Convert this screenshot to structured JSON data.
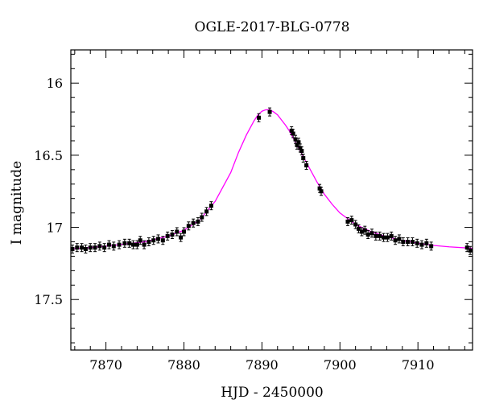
{
  "chart_data": {
    "type": "scatter",
    "title": "OGLE-2017-BLG-0778",
    "xlabel": "HJD - 2450000",
    "ylabel": "I magnitude",
    "xlim": [
      7865.5,
      7917
    ],
    "ylim": [
      17.85,
      15.77
    ],
    "y_inverted": true,
    "x_ticks": [
      7870,
      7880,
      7890,
      7900,
      7910
    ],
    "x_tick_labels": [
      "7870",
      "7880",
      "7890",
      "7900",
      "7910"
    ],
    "y_ticks": [
      16,
      16.5,
      17,
      17.5
    ],
    "y_tick_labels": [
      "16",
      "16.5",
      "17",
      "17.5"
    ],
    "grid": false,
    "series": [
      {
        "kind": "points",
        "marker": "filled-square",
        "color": "#000000",
        "x": [
          7865.7,
          7866.3,
          7866.9,
          7867.4,
          7868.0,
          7868.6,
          7869.2,
          7869.8,
          7870.4,
          7871.0,
          7871.7,
          7872.4,
          7873.0,
          7873.5,
          7874.0,
          7874.4,
          7874.9,
          7875.5,
          7876.1,
          7876.7,
          7877.3,
          7877.9,
          7878.5,
          7879.1,
          7879.6,
          7880.0,
          7880.6,
          7881.2,
          7881.8,
          7882.3,
          7882.9,
          7883.5,
          7889.6,
          7891.0,
          7893.8,
          7894.0,
          7894.3,
          7894.5,
          7894.7,
          7894.9,
          7895.1,
          7895.3,
          7895.7,
          7897.4,
          7897.6,
          7901.0,
          7901.5,
          7902.0,
          7902.4,
          7902.8,
          7903.2,
          7903.6,
          7904.1,
          7904.6,
          7905.1,
          7905.6,
          7906.1,
          7906.6,
          7907.1,
          7907.6,
          7908.1,
          7908.7,
          7909.3,
          7909.9,
          7910.5,
          7911.1,
          7911.7,
          7916.3,
          7916.7
        ],
        "y": [
          17.15,
          17.14,
          17.14,
          17.15,
          17.14,
          17.14,
          17.13,
          17.14,
          17.12,
          17.13,
          17.12,
          17.11,
          17.11,
          17.12,
          17.12,
          17.09,
          17.12,
          17.1,
          17.09,
          17.08,
          17.09,
          17.06,
          17.05,
          17.03,
          17.07,
          17.03,
          16.99,
          16.97,
          16.96,
          16.93,
          16.89,
          16.85,
          16.24,
          16.2,
          16.33,
          16.35,
          16.39,
          16.43,
          16.41,
          16.45,
          16.47,
          16.52,
          16.57,
          16.73,
          16.75,
          16.96,
          16.95,
          16.98,
          17.01,
          17.03,
          17.02,
          17.05,
          17.04,
          17.06,
          17.06,
          17.07,
          17.07,
          17.06,
          17.09,
          17.08,
          17.1,
          17.1,
          17.1,
          17.11,
          17.12,
          17.11,
          17.13,
          17.14,
          17.16
        ]
      },
      {
        "kind": "model-curve",
        "color": "#ff00ff",
        "x": [
          7865.5,
          7870,
          7875,
          7878,
          7880,
          7882,
          7884,
          7886,
          7887,
          7888,
          7889,
          7889.5,
          7890,
          7890.5,
          7891,
          7891.5,
          7892,
          7892.5,
          7893,
          7893.5,
          7894,
          7895,
          7896,
          7897,
          7898,
          7899,
          7900,
          7902,
          7904,
          7906,
          7908,
          7910,
          7912,
          7914,
          7917
        ],
        "y": [
          17.15,
          17.13,
          17.1,
          17.06,
          17.02,
          16.95,
          16.82,
          16.62,
          16.48,
          16.36,
          16.26,
          16.22,
          16.195,
          16.185,
          16.185,
          16.2,
          16.22,
          16.255,
          16.29,
          16.33,
          16.38,
          16.48,
          16.58,
          16.68,
          16.77,
          16.84,
          16.9,
          16.98,
          17.03,
          17.065,
          17.09,
          17.11,
          17.125,
          17.135,
          17.145
        ]
      }
    ]
  }
}
